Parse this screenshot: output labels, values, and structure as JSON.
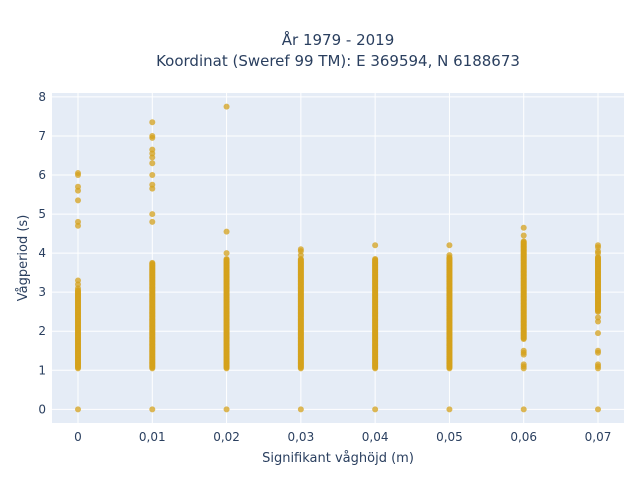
{
  "chart_data": {
    "type": "scatter",
    "title": "År 1979 - 2019",
    "subtitle": "Koordinat (Sweref 99 TM): E 369594, N 6188673",
    "xlabel": "Signifikant våghöjd (m)",
    "ylabel": "Vågperiod (s)",
    "xlim": [
      -0.0035,
      0.0735
    ],
    "ylim": [
      -0.35,
      8.1
    ],
    "x_ticks": [
      0,
      0.01,
      0.02,
      0.03,
      0.04,
      0.05,
      0.06,
      0.07
    ],
    "x_tick_labels": [
      "0",
      "0,01",
      "0,02",
      "0,03",
      "0,04",
      "0,05",
      "0,06",
      "0,07"
    ],
    "y_ticks": [
      0,
      1,
      2,
      3,
      4,
      5,
      6,
      7,
      8
    ],
    "y_tick_labels": [
      "0",
      "1",
      "2",
      "3",
      "4",
      "5",
      "6",
      "7",
      "8"
    ],
    "grid": true,
    "background": "#e5ecf6",
    "marker_color": "#d4a21c",
    "series": [
      {
        "points": [
          {
            "x": 0,
            "dense": [
              [
                1.05,
                3.05
              ]
            ],
            "y": [
              0,
              3.1,
              3.2,
              3.3,
              4.7,
              4.8,
              5.35,
              5.6,
              5.7,
              6.0,
              6.05
            ]
          },
          {
            "x": 0.01,
            "dense": [
              [
                1.05,
                3.75
              ]
            ],
            "y": [
              0,
              4.8,
              5.0,
              5.65,
              5.75,
              6.0,
              6.3,
              6.45,
              6.55,
              6.65,
              6.95,
              7.0,
              7.35
            ]
          },
          {
            "x": 0.02,
            "dense": [
              [
                1.05,
                3.85
              ]
            ],
            "y": [
              0,
              4.0,
              4.55,
              7.75
            ]
          },
          {
            "x": 0.03,
            "dense": [
              [
                1.05,
                3.85
              ]
            ],
            "y": [
              0,
              3.95,
              4.05,
              4.1
            ]
          },
          {
            "x": 0.04,
            "dense": [
              [
                1.05,
                3.85
              ]
            ],
            "y": [
              0,
              4.2
            ]
          },
          {
            "x": 0.05,
            "dense": [
              [
                1.05,
                3.9
              ]
            ],
            "y": [
              0,
              3.95,
              4.2
            ]
          },
          {
            "x": 0.06,
            "dense": [
              [
                1.8,
                4.3
              ]
            ],
            "y": [
              0,
              1.05,
              1.1,
              1.15,
              1.4,
              1.45,
              1.5,
              4.45,
              4.65
            ]
          },
          {
            "x": 0.07,
            "dense": [
              [
                2.5,
                3.9
              ]
            ],
            "y": [
              0,
              1.05,
              1.1,
              1.15,
              1.45,
              1.5,
              1.95,
              2.25,
              2.35,
              4.0,
              4.05,
              4.15,
              4.2
            ]
          }
        ]
      }
    ]
  }
}
